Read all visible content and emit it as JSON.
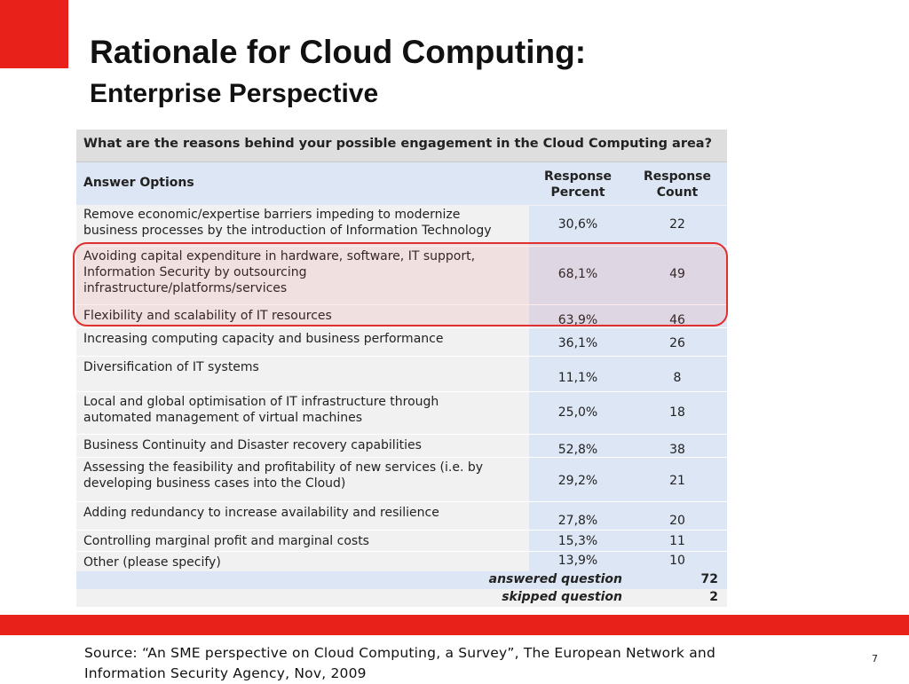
{
  "slide": {
    "title": "Rationale for Cloud Computing:",
    "subtitle": "Enterprise Perspective",
    "source": "Source: “An SME perspective on Cloud Computing, a Survey”, The European Network and Information Security Agency, Nov, 2009",
    "page_number": "7",
    "accent_color": "#e8211a"
  },
  "survey": {
    "question": "What are the reasons behind your possible engagement in the Cloud Computing area?",
    "headers": {
      "answer": "Answer Options",
      "percent": "Response\nPercent",
      "count": "Response\nCount"
    },
    "rows": [
      {
        "answer": "Remove economic/expertise barriers impeding to modernize\nbusiness processes by the introduction of Information Technology",
        "percent": "30,6%",
        "count": "22",
        "highlighted": false
      },
      {
        "answer": "Avoiding capital expenditure in hardware, software, IT support,\nInformation Security by outsourcing\ninfrastructure/platforms/services",
        "percent": "68,1%",
        "count": "49",
        "highlighted": true
      },
      {
        "answer": "Flexibility and scalability of IT resources",
        "percent": "63,9%",
        "count": "46",
        "highlighted": true
      },
      {
        "answer": "Increasing computing capacity and business performance",
        "percent": "36,1%",
        "count": "26",
        "highlighted": false
      },
      {
        "answer": "Diversification of IT systems",
        "percent": "11,1%",
        "count": "8",
        "highlighted": false
      },
      {
        "answer": "Local and global optimisation of IT infrastructure through\nautomated management of virtual machines",
        "percent": "25,0%",
        "count": "18",
        "highlighted": false
      },
      {
        "answer": "Business Continuity and Disaster recovery capabilities",
        "percent": "52,8%",
        "count": "38",
        "highlighted": false
      },
      {
        "answer": "Assessing the feasibility and profitability of new services (i.e. by\ndeveloping business cases into the Cloud)",
        "percent": "29,2%",
        "count": "21",
        "highlighted": false
      },
      {
        "answer": "Adding redundancy to increase availability and resilience",
        "percent": "27,8%",
        "count": "20",
        "highlighted": false
      },
      {
        "answer": "Controlling marginal profit and marginal costs",
        "percent": "15,3%",
        "count": "11",
        "highlighted": false
      },
      {
        "answer": "Other (please specify)",
        "percent": "13,9%",
        "count": "10",
        "highlighted": false
      }
    ],
    "answered": {
      "label": "answered question",
      "value": "72"
    },
    "skipped": {
      "label": "skipped question",
      "value": "2"
    }
  }
}
